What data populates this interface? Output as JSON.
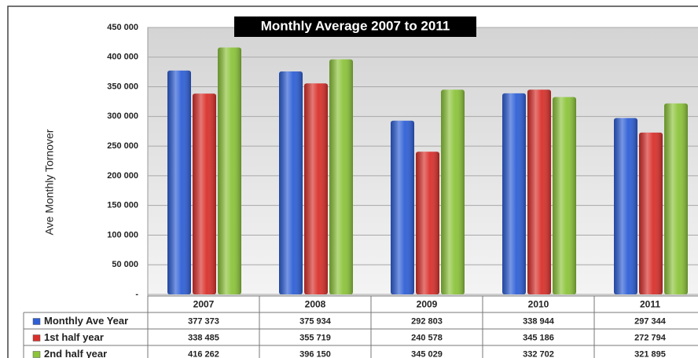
{
  "chart_data": {
    "type": "bar",
    "title": "Monthly Average 2007 to 2011",
    "y_label": "Ave Monthly Tornover",
    "categories": [
      "2007",
      "2008",
      "2009",
      "2010",
      "2011"
    ],
    "series": [
      {
        "name": "Monthly Ave Year",
        "color": "#2e5fd6",
        "values": [
          377373,
          375934,
          292803,
          338944,
          297344
        ],
        "value_labels": [
          "377 373",
          "375 934",
          "292 803",
          "338 944",
          "297 344"
        ]
      },
      {
        "name": "1st half year",
        "color": "#d9302b",
        "values": [
          338485,
          355719,
          240578,
          345186,
          272794
        ],
        "value_labels": [
          "338 485",
          "355 719",
          "240 578",
          "345 186",
          "272 794"
        ]
      },
      {
        "name": "2nd half year",
        "color": "#8cc43a",
        "values": [
          416262,
          396150,
          345029,
          332702,
          321895
        ],
        "value_labels": [
          "416 262",
          "396 150",
          "345 029",
          "332 702",
          "321 895"
        ]
      }
    ],
    "ylim": [
      0,
      450000
    ],
    "yticks": [
      {
        "value": 0,
        "label": "-"
      },
      {
        "value": 50000,
        "label": "50 000"
      },
      {
        "value": 100000,
        "label": "100 000"
      },
      {
        "value": 150000,
        "label": "150 000"
      },
      {
        "value": 200000,
        "label": "200 000"
      },
      {
        "value": 250000,
        "label": "250 000"
      },
      {
        "value": 300000,
        "label": "300 000"
      },
      {
        "value": 350000,
        "label": "350 000"
      },
      {
        "value": 400000,
        "label": "400 000"
      },
      {
        "value": 450000,
        "label": "450 000"
      }
    ],
    "grid": true
  }
}
